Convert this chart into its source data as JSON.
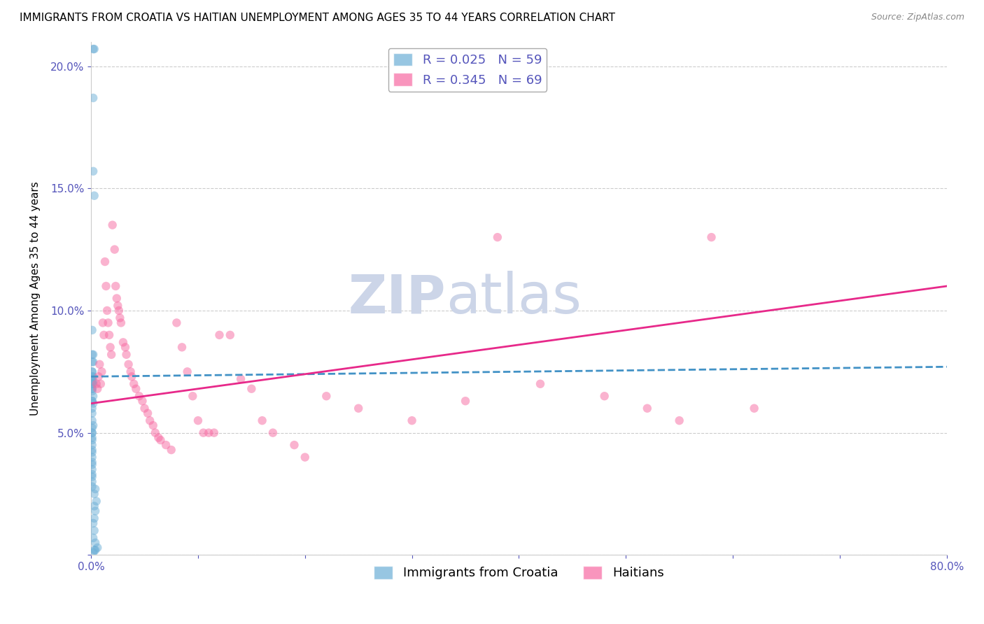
{
  "title": "IMMIGRANTS FROM CROATIA VS HAITIAN UNEMPLOYMENT AMONG AGES 35 TO 44 YEARS CORRELATION CHART",
  "source": "Source: ZipAtlas.com",
  "ylabel": "Unemployment Among Ages 35 to 44 years",
  "xlim": [
    0.0,
    0.8
  ],
  "ylim": [
    0.0,
    0.21
  ],
  "yticks": [
    0.0,
    0.05,
    0.1,
    0.15,
    0.2
  ],
  "ytick_labels": [
    "",
    "5.0%",
    "10.0%",
    "15.0%",
    "20.0%"
  ],
  "xticks": [
    0.0,
    0.1,
    0.2,
    0.3,
    0.4,
    0.5,
    0.6,
    0.7,
    0.8
  ],
  "xtick_labels": [
    "0.0%",
    "",
    "",
    "",
    "",
    "",
    "",
    "",
    "80.0%"
  ],
  "watermark": "ZIPatlas",
  "legend_label_croatia": "R = 0.025   N = 59",
  "legend_label_haitian": "R = 0.345   N = 69",
  "bottom_legend_croatia": "Immigrants from Croatia",
  "bottom_legend_haitian": "Haitians",
  "croatia_color": "#6baed6",
  "haitian_color": "#f768a1",
  "trend_croatia_color": "#4292c6",
  "trend_haitian_color": "#e7298a",
  "grid_color": "#cccccc",
  "tick_color": "#5555bb",
  "background_color": "#ffffff",
  "watermark_color": "#ccd5e8",
  "watermark_fontsize": 55,
  "title_fontsize": 11,
  "axis_label_fontsize": 11,
  "tick_fontsize": 11,
  "legend_fontsize": 13,
  "scatter_alpha": 0.5,
  "scatter_size": 80,
  "croatia_scatter_x": [
    0.002,
    0.003,
    0.002,
    0.002,
    0.003,
    0.001,
    0.002,
    0.001,
    0.001,
    0.002,
    0.001,
    0.001,
    0.002,
    0.001,
    0.001,
    0.002,
    0.001,
    0.002,
    0.001,
    0.001,
    0.001,
    0.002,
    0.001,
    0.001,
    0.002,
    0.001,
    0.001,
    0.001,
    0.002,
    0.001,
    0.001,
    0.001,
    0.001,
    0.001,
    0.001,
    0.001,
    0.001,
    0.001,
    0.001,
    0.001,
    0.001,
    0.001,
    0.001,
    0.001,
    0.001,
    0.004,
    0.003,
    0.005,
    0.003,
    0.004,
    0.003,
    0.002,
    0.003,
    0.002,
    0.004,
    0.006,
    0.002,
    0.003,
    0.004
  ],
  "croatia_scatter_y": [
    0.207,
    0.207,
    0.187,
    0.157,
    0.147,
    0.092,
    0.082,
    0.082,
    0.079,
    0.079,
    0.075,
    0.075,
    0.073,
    0.073,
    0.071,
    0.071,
    0.07,
    0.07,
    0.068,
    0.068,
    0.067,
    0.065,
    0.063,
    0.063,
    0.062,
    0.06,
    0.058,
    0.055,
    0.053,
    0.052,
    0.05,
    0.05,
    0.048,
    0.047,
    0.045,
    0.043,
    0.042,
    0.04,
    0.038,
    0.037,
    0.035,
    0.033,
    0.032,
    0.03,
    0.028,
    0.027,
    0.025,
    0.022,
    0.02,
    0.018,
    0.015,
    0.013,
    0.01,
    0.007,
    0.005,
    0.003,
    0.001,
    0.002,
    0.002
  ],
  "haitian_scatter_x": [
    0.005,
    0.006,
    0.007,
    0.008,
    0.009,
    0.01,
    0.011,
    0.012,
    0.013,
    0.014,
    0.015,
    0.016,
    0.017,
    0.018,
    0.019,
    0.02,
    0.022,
    0.023,
    0.024,
    0.025,
    0.026,
    0.027,
    0.028,
    0.03,
    0.032,
    0.033,
    0.035,
    0.037,
    0.038,
    0.04,
    0.042,
    0.045,
    0.048,
    0.05,
    0.053,
    0.055,
    0.058,
    0.06,
    0.063,
    0.065,
    0.07,
    0.075,
    0.08,
    0.085,
    0.09,
    0.095,
    0.1,
    0.105,
    0.11,
    0.115,
    0.12,
    0.13,
    0.14,
    0.15,
    0.16,
    0.17,
    0.19,
    0.2,
    0.22,
    0.25,
    0.3,
    0.35,
    0.38,
    0.42,
    0.48,
    0.52,
    0.55,
    0.58,
    0.62
  ],
  "haitian_scatter_y": [
    0.07,
    0.068,
    0.073,
    0.078,
    0.07,
    0.075,
    0.095,
    0.09,
    0.12,
    0.11,
    0.1,
    0.095,
    0.09,
    0.085,
    0.082,
    0.135,
    0.125,
    0.11,
    0.105,
    0.102,
    0.1,
    0.097,
    0.095,
    0.087,
    0.085,
    0.082,
    0.078,
    0.075,
    0.073,
    0.07,
    0.068,
    0.065,
    0.063,
    0.06,
    0.058,
    0.055,
    0.053,
    0.05,
    0.048,
    0.047,
    0.045,
    0.043,
    0.095,
    0.085,
    0.075,
    0.065,
    0.055,
    0.05,
    0.05,
    0.05,
    0.09,
    0.09,
    0.072,
    0.068,
    0.055,
    0.05,
    0.045,
    0.04,
    0.065,
    0.06,
    0.055,
    0.063,
    0.13,
    0.07,
    0.065,
    0.06,
    0.055,
    0.13,
    0.06
  ],
  "croatia_trend_x": [
    0.0,
    0.8
  ],
  "croatia_trend_y": [
    0.073,
    0.077
  ],
  "haitian_trend_x": [
    0.0,
    0.8
  ],
  "haitian_trend_y": [
    0.062,
    0.11
  ]
}
